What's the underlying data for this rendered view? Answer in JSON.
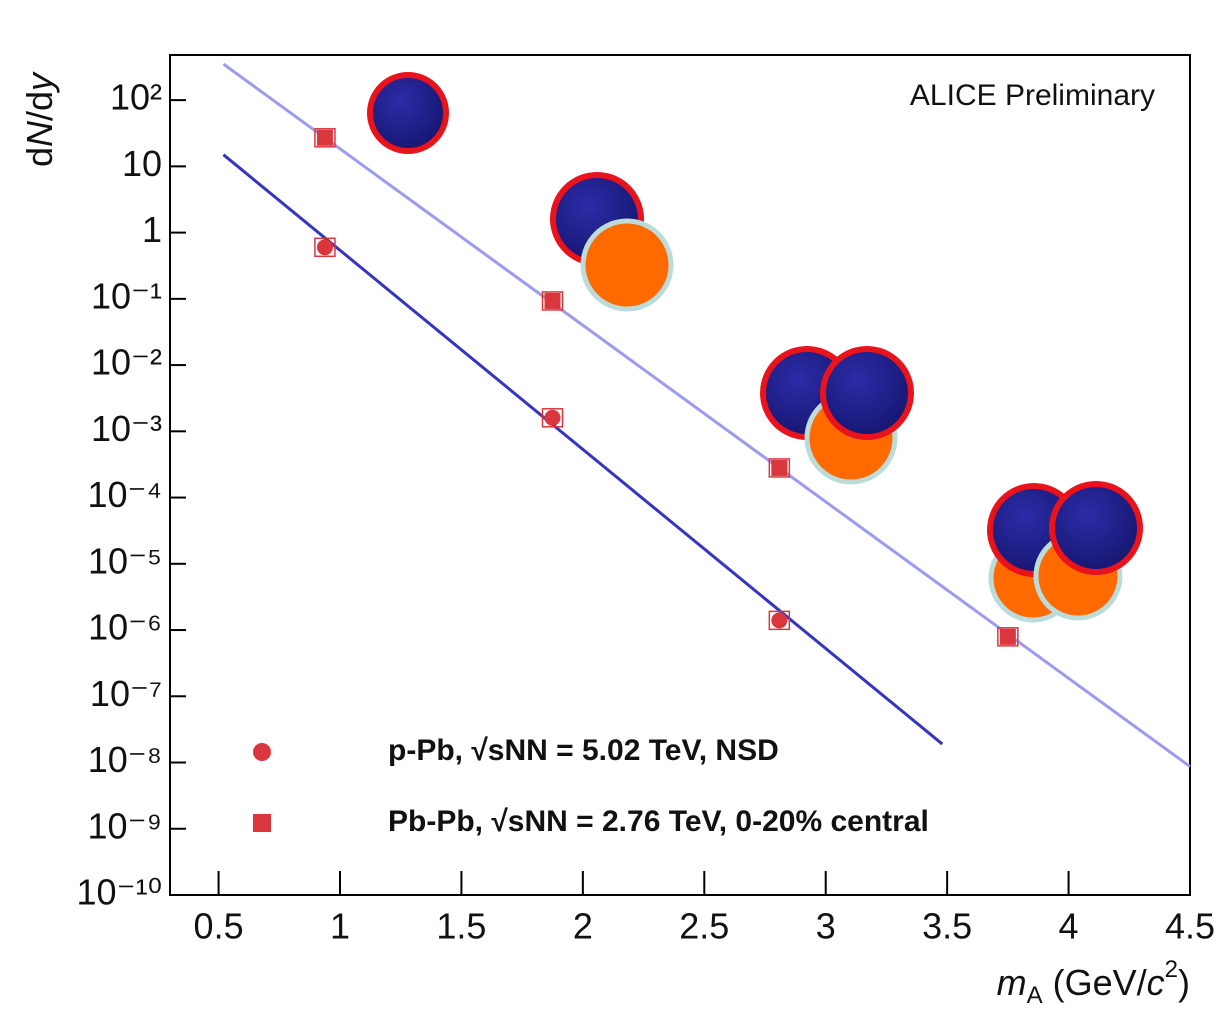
{
  "chart_data": {
    "type": "scatter",
    "annotation": "ALICE Preliminary",
    "ylabel": [
      "d",
      "N",
      "/d",
      "y"
    ],
    "xlabel": [
      "m",
      "A",
      " (GeV/",
      "c",
      "2",
      ")"
    ],
    "xlim": [
      0.3,
      4.5
    ],
    "xticks": [
      0.5,
      1,
      1.5,
      2,
      2.5,
      3,
      3.5,
      4,
      4.5
    ],
    "ylim": [
      1e-10,
      480
    ],
    "log_y": true,
    "yticks": [
      {
        "value": 1e-10,
        "label": "10⁻¹⁰"
      },
      {
        "value": 1e-09,
        "label": "10⁻⁹"
      },
      {
        "value": 1e-08,
        "label": "10⁻⁸"
      },
      {
        "value": 1e-07,
        "label": "10⁻⁷"
      },
      {
        "value": 1e-06,
        "label": "10⁻⁶"
      },
      {
        "value": 1e-05,
        "label": "10⁻⁵"
      },
      {
        "value": 0.0001,
        "label": "10⁻⁴"
      },
      {
        "value": 0.001,
        "label": "10⁻³"
      },
      {
        "value": 0.01,
        "label": "10⁻²"
      },
      {
        "value": 0.1,
        "label": "10⁻¹"
      },
      1,
      10,
      {
        "value": 100,
        "label": "10²"
      }
    ],
    "series": [
      {
        "name": "p-Pb, √sNN = 5.02 TeV, NSD",
        "color": "#d9363e",
        "marker": "circle",
        "x": [
          0.938,
          1.875,
          2.809
        ],
        "values": [
          0.6,
          0.0016,
          1.4e-06
        ]
      },
      {
        "name": "Pb-Pb, √sNN = 2.76 TeV, 0-20% central",
        "color": "#d9363e",
        "marker": "square",
        "x": [
          0.938,
          1.875,
          2.809,
          3.75
        ],
        "values": [
          27,
          0.093,
          0.00028,
          7.9e-07
        ]
      }
    ],
    "fits": [
      {
        "color": "#3535c0",
        "x": [
          0.52,
          3.48
        ],
        "values": [
          15,
          1.9e-08
        ]
      },
      {
        "color": "#9c9cee",
        "x": [
          0.52,
          4.5
        ],
        "values": [
          350,
          8.7e-09
        ]
      }
    ]
  }
}
